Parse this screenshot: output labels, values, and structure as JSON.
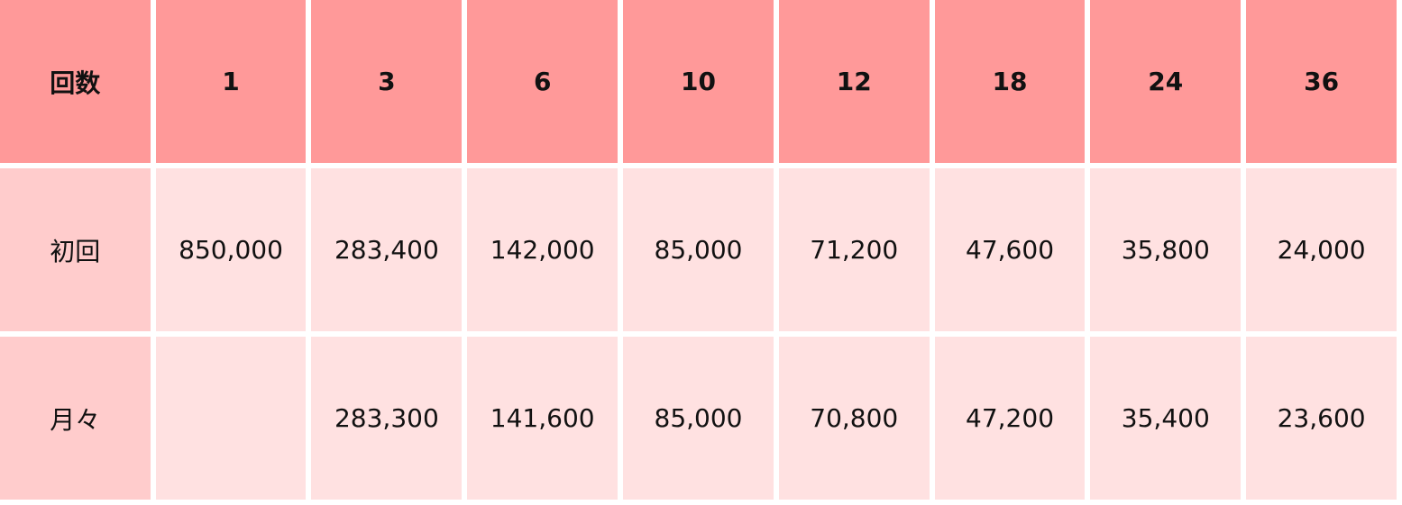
{
  "table": {
    "header": [
      "回数",
      "1",
      "3",
      "6",
      "10",
      "12",
      "18",
      "24",
      "36"
    ],
    "rows": [
      [
        "初回",
        "850,000",
        "283,400",
        "142,000",
        "85,000",
        "71,200",
        "47,600",
        "35,800",
        "24,000"
      ],
      [
        "月々",
        "",
        "283,300",
        "141,600",
        "85,000",
        "70,800",
        "47,200",
        "35,400",
        "23,600"
      ]
    ]
  },
  "colors": {
    "header": "#ff9999",
    "row_label": "#ffcccc",
    "cell": "#ffe1e1"
  }
}
